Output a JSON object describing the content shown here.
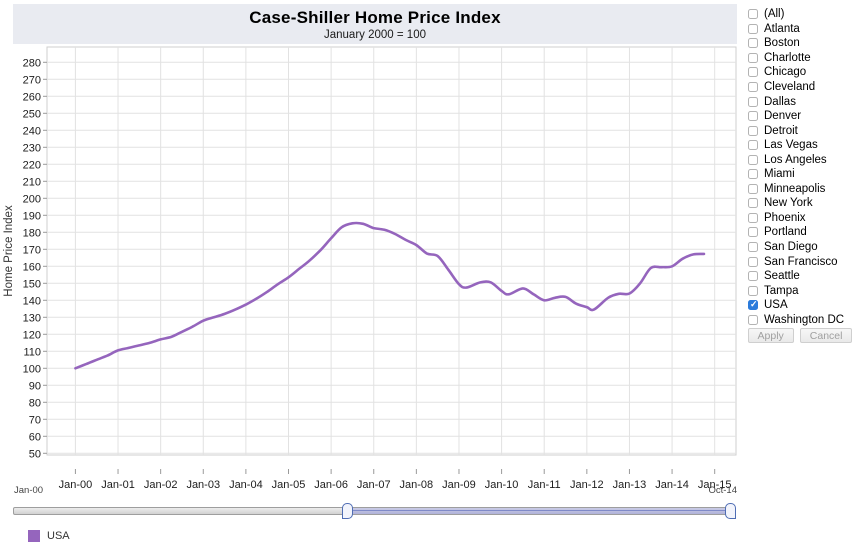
{
  "header": {
    "title": "Case-Shiller Home Price Index",
    "subtitle": "January 2000 = 100"
  },
  "chart_data": {
    "type": "line",
    "title": "Case-Shiller Home Price Index",
    "subtitle": "January 2000 = 100",
    "xlabel": "",
    "ylabel": "Home Price Index",
    "grid": true,
    "legend_position": "bottom-left",
    "y_ticks": [
      50,
      60,
      70,
      80,
      90,
      100,
      110,
      120,
      130,
      140,
      150,
      160,
      170,
      180,
      190,
      200,
      210,
      220,
      230,
      240,
      250,
      260,
      270,
      280
    ],
    "ylim": [
      49,
      289
    ],
    "x_tick_labels": [
      "Jan-00",
      "Jan-01",
      "Jan-02",
      "Jan-03",
      "Jan-04",
      "Jan-05",
      "Jan-06",
      "Jan-07",
      "Jan-08",
      "Jan-09",
      "Jan-10",
      "Jan-11",
      "Jan-12",
      "Jan-13",
      "Jan-14",
      "Jan-15"
    ],
    "xlim_months": [
      -8,
      186
    ],
    "series": [
      {
        "name": "USA",
        "color": "#9565bd",
        "points_month_value": [
          [
            0,
            100
          ],
          [
            3,
            102.5
          ],
          [
            6,
            105
          ],
          [
            9,
            107.5
          ],
          [
            12,
            110.5
          ],
          [
            15,
            112
          ],
          [
            18,
            113.5
          ],
          [
            21,
            115
          ],
          [
            24,
            117
          ],
          [
            27,
            118.5
          ],
          [
            30,
            121.5
          ],
          [
            33,
            124.5
          ],
          [
            36,
            128
          ],
          [
            39,
            130
          ],
          [
            42,
            132
          ],
          [
            45,
            134.5
          ],
          [
            48,
            137.5
          ],
          [
            51,
            141
          ],
          [
            54,
            145
          ],
          [
            57,
            149.5
          ],
          [
            60,
            153.5
          ],
          [
            63,
            158.5
          ],
          [
            66,
            163.5
          ],
          [
            69,
            169.5
          ],
          [
            72,
            176.5
          ],
          [
            75,
            183
          ],
          [
            78,
            185.3
          ],
          [
            81,
            185
          ],
          [
            84,
            182.5
          ],
          [
            87,
            181.5
          ],
          [
            90,
            179
          ],
          [
            93,
            175.5
          ],
          [
            96,
            172.5
          ],
          [
            99,
            167.5
          ],
          [
            102,
            166
          ],
          [
            105,
            158
          ],
          [
            108,
            149.5
          ],
          [
            110,
            147.5
          ],
          [
            114,
            150.5
          ],
          [
            117,
            150.5
          ],
          [
            120,
            145.5
          ],
          [
            122,
            143.5
          ],
          [
            126,
            147
          ],
          [
            129,
            143.5
          ],
          [
            132,
            140
          ],
          [
            135,
            141.5
          ],
          [
            138,
            142
          ],
          [
            141,
            138
          ],
          [
            144,
            136
          ],
          [
            146,
            134.5
          ],
          [
            150,
            141.5
          ],
          [
            153,
            143.8
          ],
          [
            156,
            144
          ],
          [
            159,
            150
          ],
          [
            162,
            159
          ],
          [
            165,
            159.5
          ],
          [
            168,
            160
          ],
          [
            171,
            164.5
          ],
          [
            174,
            167
          ],
          [
            177,
            167.3
          ]
        ]
      }
    ]
  },
  "filter_panel": {
    "items": [
      {
        "label": "(All)",
        "checked": false
      },
      {
        "label": "Atlanta",
        "checked": false
      },
      {
        "label": "Boston",
        "checked": false
      },
      {
        "label": "Charlotte",
        "checked": false
      },
      {
        "label": "Chicago",
        "checked": false
      },
      {
        "label": "Cleveland",
        "checked": false
      },
      {
        "label": "Dallas",
        "checked": false
      },
      {
        "label": "Denver",
        "checked": false
      },
      {
        "label": "Detroit",
        "checked": false
      },
      {
        "label": "Las Vegas",
        "checked": false
      },
      {
        "label": "Los Angeles",
        "checked": false
      },
      {
        "label": "Miami",
        "checked": false
      },
      {
        "label": "Minneapolis",
        "checked": false
      },
      {
        "label": "New York",
        "checked": false
      },
      {
        "label": "Phoenix",
        "checked": false
      },
      {
        "label": "Portland",
        "checked": false
      },
      {
        "label": "San Diego",
        "checked": false
      },
      {
        "label": "San Francisco",
        "checked": false
      },
      {
        "label": "Seattle",
        "checked": false
      },
      {
        "label": "Tampa",
        "checked": false
      },
      {
        "label": "USA",
        "checked": true
      },
      {
        "label": "Washington DC",
        "checked": false
      }
    ],
    "apply_label": "Apply",
    "cancel_label": "Cancel"
  },
  "range_slider": {
    "start_label": "Jan-00",
    "end_label": "Oct-14"
  },
  "legend": {
    "label": "USA",
    "color": "#9565bd"
  },
  "colors": {
    "line": "#9565bd",
    "checked_checkbox": "#2b7bdb",
    "header_background": "#e9ebf1",
    "gridline": "#e2e2e2",
    "axis": "#c9c9c9"
  }
}
